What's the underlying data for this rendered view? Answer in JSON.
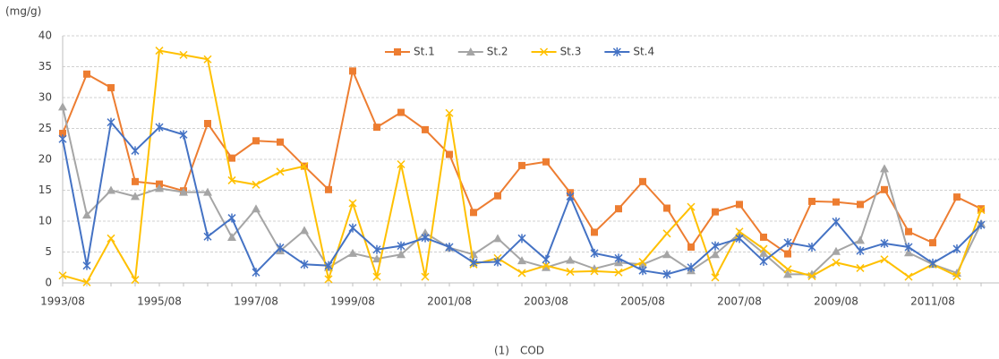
{
  "chart_data": {
    "type": "line",
    "y_label": "(mg/g)",
    "caption": "(1)　COD",
    "x": [
      "1993/08",
      "1994/02",
      "1994/08",
      "1995/02",
      "1995/08",
      "1996/02",
      "1996/08",
      "1997/02",
      "1997/08",
      "1998/02",
      "1998/08",
      "1999/02",
      "1999/08",
      "2000/02",
      "2000/08",
      "2001/02",
      "2001/08",
      "2002/02",
      "2002/08",
      "2003/02",
      "2003/08",
      "2004/02",
      "2004/08",
      "2005/02",
      "2005/08",
      "2006/02",
      "2006/08",
      "2007/02",
      "2007/08",
      "2008/02",
      "2008/08",
      "2009/02",
      "2009/08",
      "2010/02",
      "2010/08",
      "2011/02",
      "2011/08",
      "2012/02",
      "2012/08"
    ],
    "xticks": [
      "1993/08",
      "1995/08",
      "1997/08",
      "1999/08",
      "2001/08",
      "2003/08",
      "2005/08",
      "2007/08",
      "2009/08",
      "2011/08"
    ],
    "ylim": [
      0,
      40
    ],
    "yticks": [
      0,
      5,
      10,
      15,
      20,
      25,
      30,
      35,
      40
    ],
    "grid": true,
    "legend": "top",
    "series": [
      {
        "name": "St.1",
        "color": "#ED7D31",
        "marker": "square",
        "values": [
          24.2,
          33.8,
          31.6,
          16.4,
          16.0,
          14.9,
          25.8,
          20.2,
          23.0,
          22.8,
          18.9,
          15.1,
          34.3,
          25.2,
          27.6,
          24.8,
          20.8,
          11.4,
          14.1,
          19.0,
          19.6,
          14.6,
          8.2,
          12.0,
          16.4,
          12.1,
          5.8,
          11.5,
          12.7,
          7.4,
          4.7,
          13.2,
          13.1,
          12.7,
          15.1,
          8.3,
          6.5,
          13.9,
          12.0
        ]
      },
      {
        "name": "St.2",
        "color": "#A5A5A5",
        "marker": "triangle",
        "values": [
          28.5,
          11.0,
          15.0,
          14.0,
          15.3,
          14.7,
          14.7,
          7.4,
          12.0,
          5.2,
          8.5,
          2.5,
          4.8,
          3.9,
          4.6,
          8.1,
          5.7,
          4.6,
          7.2,
          3.6,
          2.5,
          3.7,
          2.3,
          3.3,
          3.0,
          4.6,
          2.0,
          4.6,
          8.0,
          4.8,
          1.4,
          1.4,
          5.1,
          6.9,
          18.5,
          4.9,
          3.0,
          1.6,
          9.6
        ]
      },
      {
        "name": "St.3",
        "color": "#FFC000",
        "marker": "x",
        "values": [
          1.2,
          0.1,
          7.2,
          0.5,
          37.6,
          36.9,
          36.2,
          16.6,
          15.9,
          18.0,
          18.9,
          0.6,
          12.9,
          1.0,
          19.2,
          1.0,
          27.5,
          3.0,
          4.0,
          1.6,
          2.8,
          1.8,
          1.9,
          1.7,
          3.4,
          8.0,
          12.3,
          0.9,
          8.3,
          5.5,
          2.2,
          1.1,
          3.3,
          2.4,
          3.8,
          1.0,
          3.0,
          1.1,
          11.8
        ]
      },
      {
        "name": "St.4",
        "color": "#4472C4",
        "marker": "asterisk",
        "values": [
          23.3,
          2.8,
          26.0,
          21.4,
          25.2,
          24.0,
          7.5,
          10.5,
          1.7,
          5.7,
          3.0,
          2.8,
          8.9,
          5.4,
          6.0,
          7.3,
          5.8,
          3.3,
          3.4,
          7.2,
          3.8,
          14.0,
          4.8,
          4.0,
          2.0,
          1.4,
          2.5,
          6.0,
          7.2,
          3.5,
          6.5,
          5.8,
          9.9,
          5.2,
          6.4,
          5.8,
          3.2,
          5.5,
          9.4
        ]
      }
    ]
  }
}
